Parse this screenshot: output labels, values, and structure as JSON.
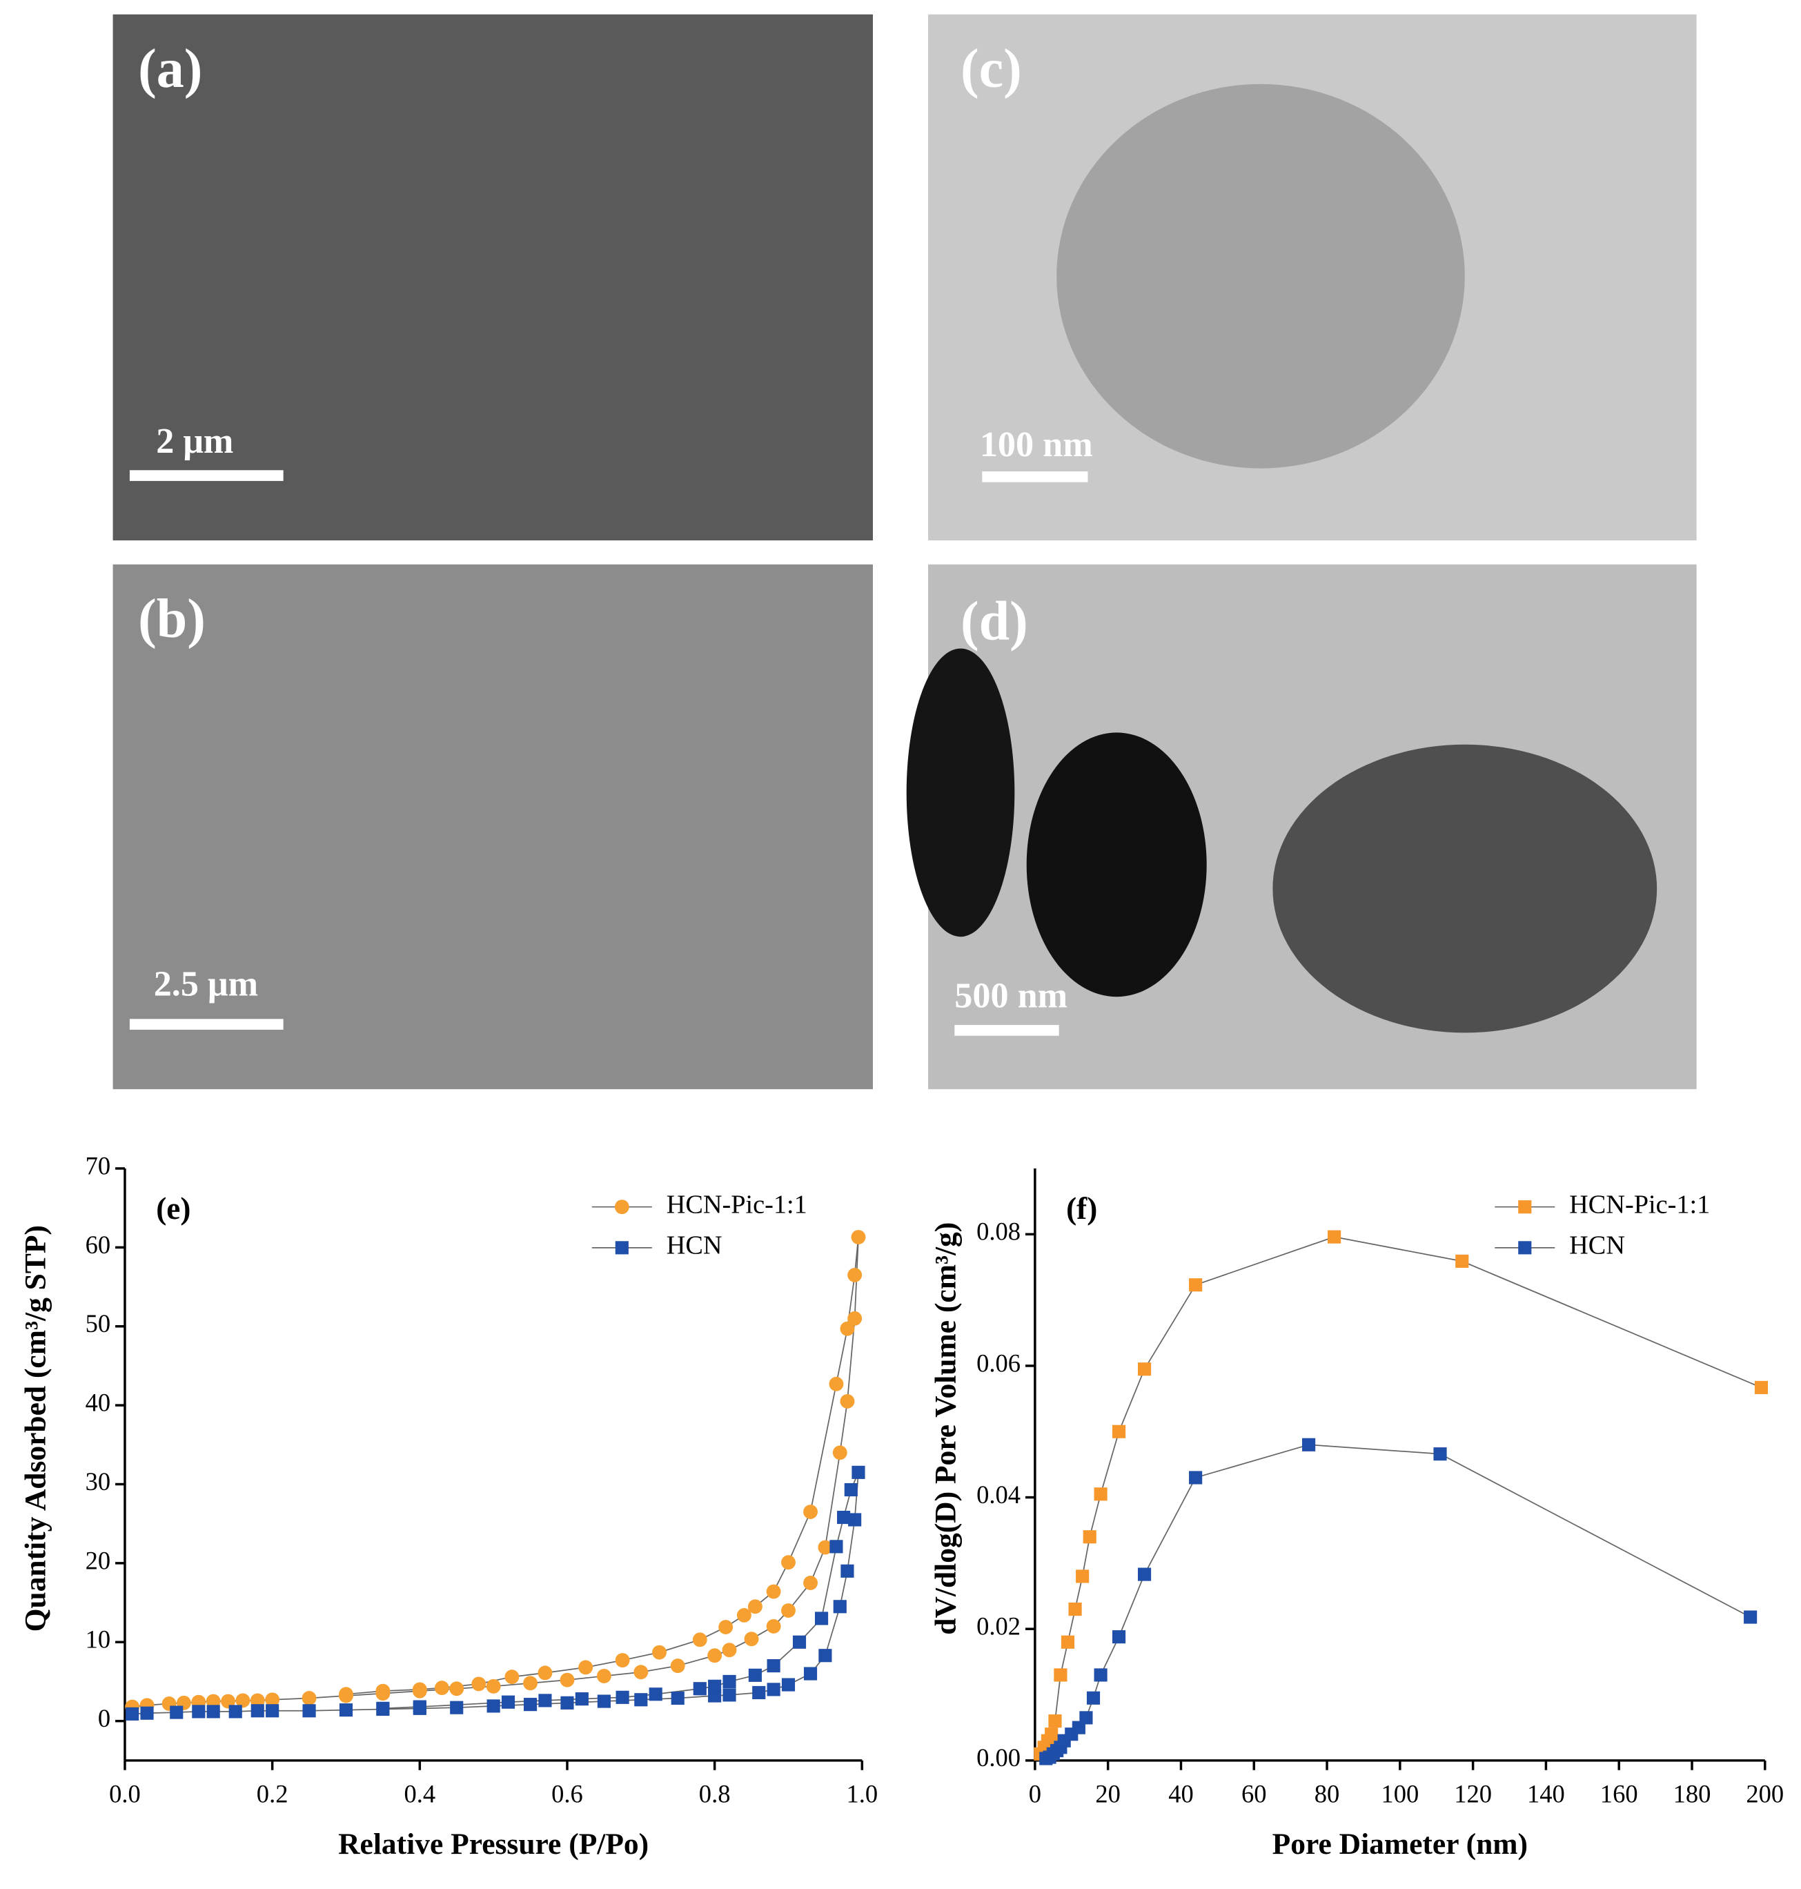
{
  "micrographs": [
    {
      "label": "(a)",
      "scale_bar": "2 μm"
    },
    {
      "label": "(c)",
      "scale_bar": "100 nm"
    },
    {
      "label": "(b)",
      "scale_bar": "2.5 μm"
    },
    {
      "label": "(d)",
      "scale_bar": "500 nm"
    }
  ],
  "chart_data": [
    {
      "type": "line",
      "panel_label": "(e)",
      "x_label": "Relative Pressure (P/Po)",
      "y_label": "Quantity Adsorbed (cm³/g STP)",
      "xlim": [
        0,
        1
      ],
      "xticks": [
        {
          "value": 0,
          "label": "0.0"
        },
        0.2,
        0.4,
        0.6,
        0.8,
        {
          "value": 1,
          "label": "1.0"
        }
      ],
      "ylim": [
        -5,
        70
      ],
      "yticks": [
        0,
        10,
        20,
        30,
        40,
        50,
        60,
        70
      ],
      "legend": "upper right",
      "series": [
        {
          "name": "HCN-Pic-1:1",
          "color": "#f5a030",
          "marker": "circle",
          "x": [
            0.01,
            0.03,
            0.06,
            0.08,
            0.1,
            0.12,
            0.14,
            0.16,
            0.18,
            0.2,
            0.25,
            0.3,
            0.35,
            0.4,
            0.45,
            0.5,
            0.55,
            0.6,
            0.65,
            0.7,
            0.75,
            0.8,
            0.82,
            0.85,
            0.88,
            0.9,
            0.93,
            0.95,
            0.97,
            0.98,
            0.99,
            0.995,
            0.99,
            0.98,
            0.965,
            0.93,
            0.9,
            0.88,
            0.855,
            0.84,
            0.815,
            0.78,
            0.725,
            0.675,
            0.625,
            0.57,
            0.525,
            0.48,
            0.43,
            0.4,
            0.35,
            0.3
          ],
          "values": [
            1.8,
            2.0,
            2.2,
            2.3,
            2.4,
            2.5,
            2.5,
            2.6,
            2.6,
            2.7,
            2.9,
            3.2,
            3.5,
            3.8,
            4.1,
            4.4,
            4.8,
            5.2,
            5.7,
            6.2,
            7.0,
            8.3,
            9.0,
            10.4,
            12.0,
            14.0,
            17.5,
            22,
            34,
            40.5,
            51,
            61.3,
            56.5,
            49.7,
            42.7,
            26.5,
            20.1,
            16.4,
            14.5,
            13.4,
            11.9,
            10.3,
            8.7,
            7.7,
            6.8,
            6.1,
            5.6,
            4.7,
            4.2,
            4.0,
            3.8,
            3.4
          ]
        },
        {
          "name": "HCN",
          "color": "#1f4fa8",
          "marker": "square",
          "x": [
            0.01,
            0.03,
            0.07,
            0.1,
            0.12,
            0.15,
            0.18,
            0.2,
            0.25,
            0.3,
            0.35,
            0.4,
            0.45,
            0.5,
            0.55,
            0.6,
            0.65,
            0.7,
            0.75,
            0.8,
            0.82,
            0.86,
            0.88,
            0.9,
            0.93,
            0.95,
            0.97,
            0.98,
            0.99,
            0.995,
            0.985,
            0.975,
            0.965,
            0.945,
            0.915,
            0.88,
            0.855,
            0.82,
            0.8,
            0.78,
            0.72,
            0.675,
            0.62,
            0.57,
            0.52,
            0.4,
            0.35
          ],
          "values": [
            0.9,
            1.0,
            1.1,
            1.2,
            1.2,
            1.2,
            1.3,
            1.3,
            1.3,
            1.4,
            1.5,
            1.6,
            1.7,
            1.9,
            2.1,
            2.3,
            2.5,
            2.7,
            2.9,
            3.2,
            3.3,
            3.6,
            4.0,
            4.6,
            6.0,
            8.3,
            14.5,
            19,
            25.5,
            31.5,
            29.3,
            25.8,
            22.1,
            13.0,
            10.0,
            7.0,
            5.8,
            5.0,
            4.4,
            4.1,
            3.4,
            3.0,
            2.8,
            2.6,
            2.4,
            1.8,
            1.6
          ]
        }
      ]
    },
    {
      "type": "line",
      "panel_label": "(f)",
      "x_label": "Pore Diameter (nm)",
      "y_label": "dV/dlog(D) Pore Volume (cm³/g)",
      "xlim": [
        0,
        200
      ],
      "xticks": [
        0,
        20,
        40,
        60,
        80,
        100,
        120,
        140,
        160,
        180,
        200
      ],
      "ylim": [
        0,
        0.09
      ],
      "yticks": [
        {
          "value": 0,
          "label": "0.00"
        },
        {
          "value": 0.02,
          "label": "0.02"
        },
        {
          "value": 0.04,
          "label": "0.04"
        },
        {
          "value": 0.06,
          "label": "0.06"
        },
        {
          "value": 0.08,
          "label": "0.08"
        }
      ],
      "legend": "upper right",
      "series": [
        {
          "name": "HCN-Pic-1:1",
          "color": "#f7962a",
          "marker": "square",
          "x": [
            1.5,
            2.5,
            3.5,
            4.5,
            5.5,
            7,
            9,
            11,
            13,
            15,
            18,
            23,
            30,
            44,
            82,
            117,
            199
          ],
          "values": [
            0.001,
            0.002,
            0.003,
            0.004,
            0.006,
            0.013,
            0.018,
            0.023,
            0.028,
            0.034,
            0.0405,
            0.05,
            0.0595,
            0.0723,
            0.0796,
            0.0759,
            0.0567
          ]
        },
        {
          "name": "HCN",
          "color": "#1f4fa8",
          "marker": "square",
          "x": [
            3,
            4,
            5,
            6,
            7,
            8,
            10,
            12,
            14,
            16,
            18,
            23,
            30,
            44,
            75,
            111,
            196
          ],
          "values": [
            0.0003,
            0.0005,
            0.001,
            0.0015,
            0.002,
            0.003,
            0.004,
            0.005,
            0.0065,
            0.0095,
            0.013,
            0.0188,
            0.0283,
            0.043,
            0.048,
            0.0466,
            0.0218
          ]
        }
      ]
    }
  ]
}
